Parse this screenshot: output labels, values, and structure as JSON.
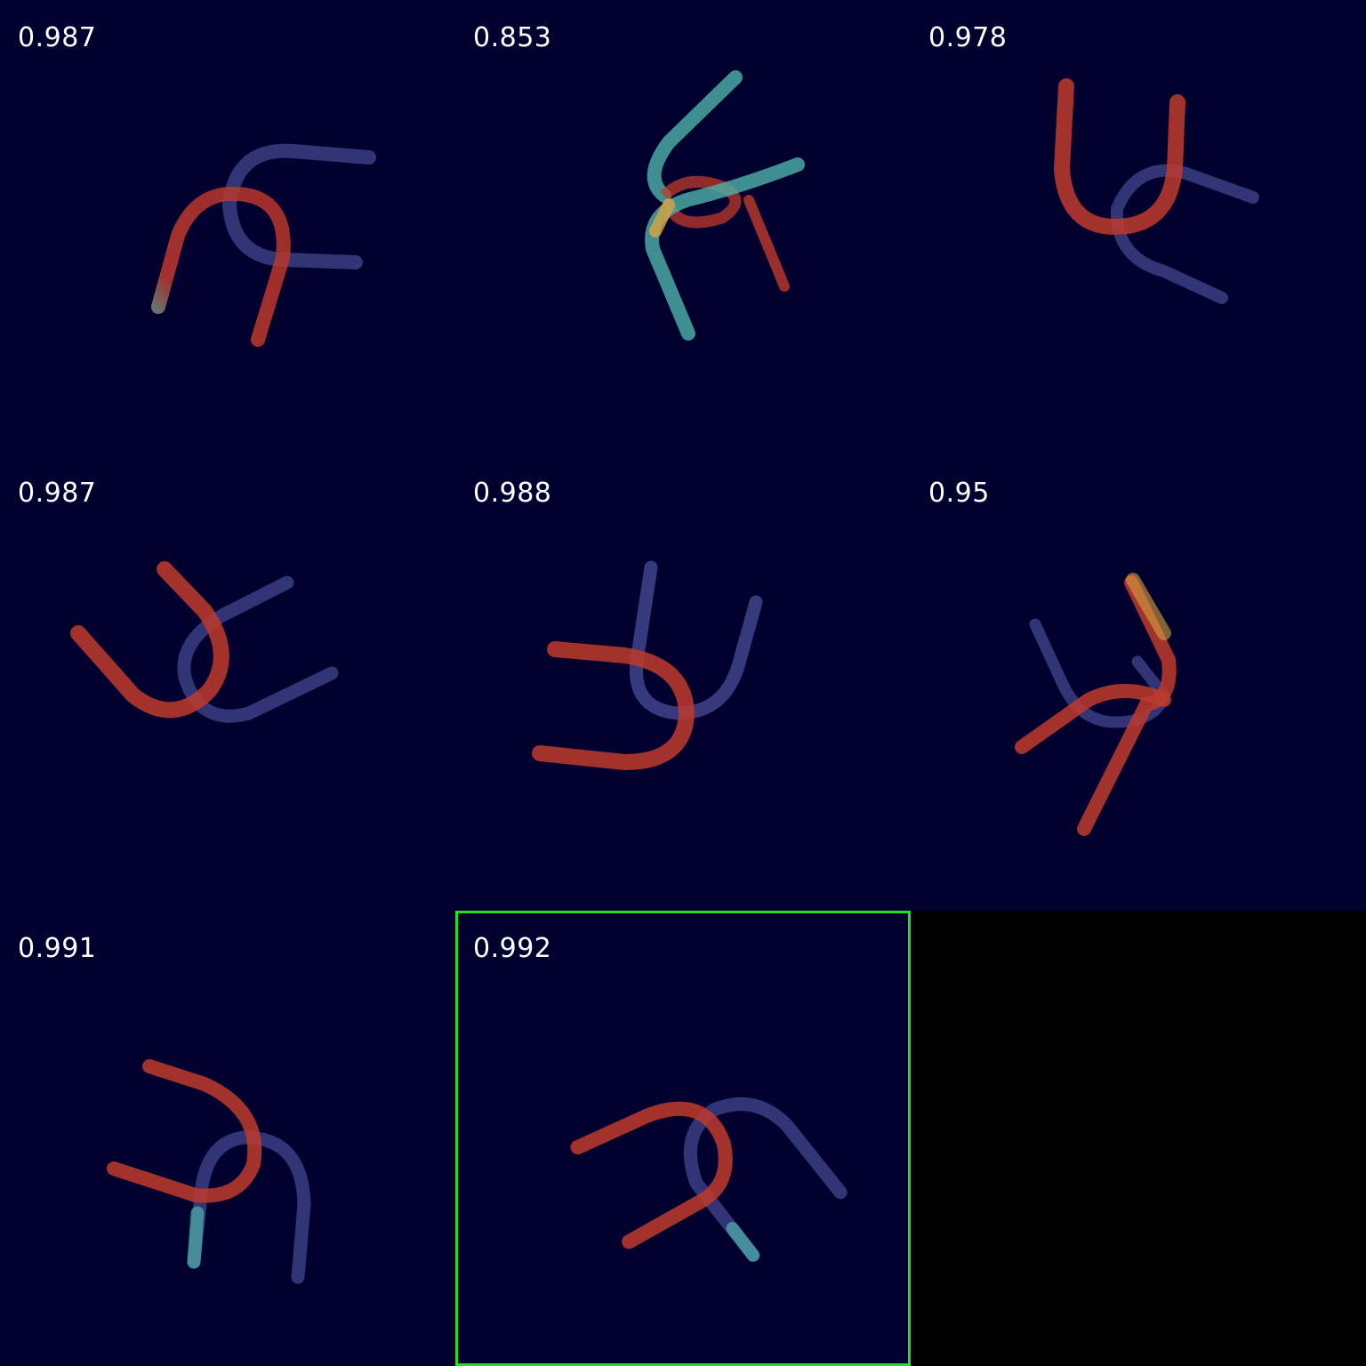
{
  "tiles": [
    {
      "score": "0.987",
      "selected": false,
      "empty": false
    },
    {
      "score": "0.853",
      "selected": false,
      "empty": false
    },
    {
      "score": "0.978",
      "selected": false,
      "empty": false
    },
    {
      "score": "0.987",
      "selected": false,
      "empty": false
    },
    {
      "score": "0.988",
      "selected": false,
      "empty": false
    },
    {
      "score": "0.95",
      "selected": false,
      "empty": false
    },
    {
      "score": "0.991",
      "selected": false,
      "empty": false
    },
    {
      "score": "0.992",
      "selected": true,
      "empty": false
    },
    {
      "score": null,
      "selected": false,
      "empty": true
    }
  ],
  "colors": {
    "background": "#00002e",
    "heat_hot": "#c0392b",
    "heat_warm": "#d9a441",
    "heat_cool": "#4fb3a9",
    "ghost": "#5a5fb0",
    "selection_border": "#22e022"
  }
}
